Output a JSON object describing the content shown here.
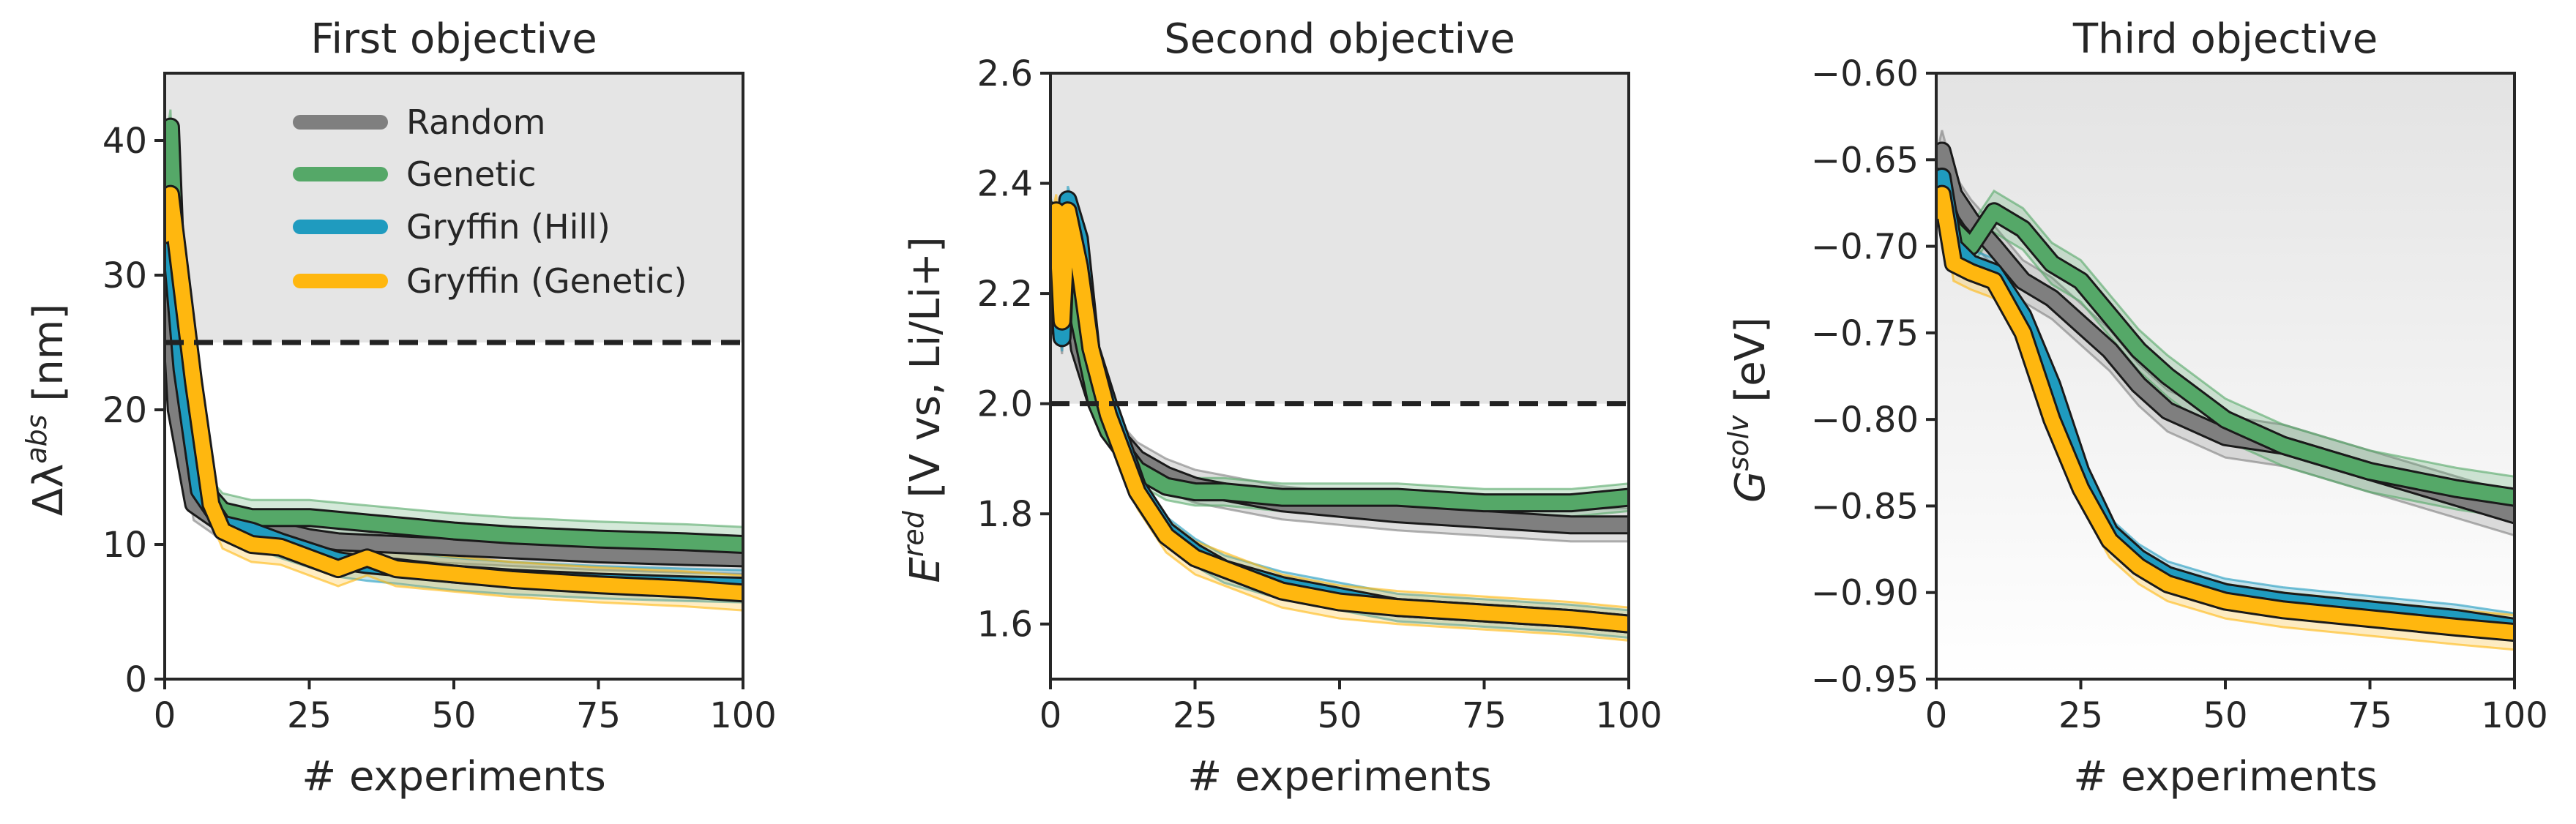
{
  "colors": {
    "Random": "#7f7f7f",
    "Genetic": "#55a868",
    "Gryffin (Hill)": "#1f9bbf",
    "Gryffin (Genetic)": "#ffb70f",
    "threshold_line": "#222222",
    "shade": "#e5e5e5"
  },
  "chart_data": [
    {
      "type": "line",
      "title": "First objective",
      "xlabel": "# experiments",
      "ylabel_base": "Δλ",
      "ylabel_sup": "abs",
      "ylabel_suffix": " [nm]",
      "xlim": [
        0,
        100
      ],
      "ylim": [
        0,
        45
      ],
      "xticks": [
        0,
        25,
        50,
        75,
        100
      ],
      "yticks": [
        0,
        10,
        20,
        30,
        40
      ],
      "threshold": 25,
      "shaded_region": "above-threshold",
      "legend": {
        "placement": "top-center",
        "entries": [
          "Random",
          "Genetic",
          "Gryffin (Hill)",
          "Gryffin (Genetic)"
        ]
      },
      "series": [
        {
          "name": "Random",
          "x": [
            0,
            2,
            5,
            10,
            15,
            20,
            25,
            30,
            40,
            50,
            60,
            75,
            90,
            100
          ],
          "y": [
            35,
            20,
            13,
            11.5,
            11,
            11,
            10.5,
            10.2,
            10,
            9.8,
            9.6,
            9.3,
            9.1,
            9.0
          ],
          "band": 1.2
        },
        {
          "name": "Genetic",
          "x": [
            0,
            1,
            2,
            4,
            7,
            10,
            15,
            20,
            25,
            30,
            40,
            50,
            60,
            75,
            90,
            100
          ],
          "y": [
            38,
            41,
            30,
            20,
            14,
            12.5,
            12,
            12,
            12,
            11.8,
            11.4,
            11,
            10.7,
            10.4,
            10.2,
            10.0
          ],
          "band": 1.3
        },
        {
          "name": "Gryffin (Hill)",
          "x": [
            0,
            1,
            3,
            6,
            10,
            15,
            20,
            25,
            30,
            35,
            40,
            50,
            60,
            75,
            90,
            100
          ],
          "y": [
            34,
            33,
            23,
            14,
            11.5,
            11,
            10.2,
            9.5,
            8.8,
            8.5,
            8.3,
            7.8,
            7.5,
            7.2,
            7.0,
            6.9
          ],
          "band": 1.2
        },
        {
          "name": "Gryffin (Genetic)",
          "x": [
            0,
            1,
            3,
            5,
            8,
            10,
            15,
            20,
            25,
            30,
            35,
            40,
            50,
            60,
            75,
            90,
            100
          ],
          "y": [
            33,
            36,
            29,
            22,
            13,
            11,
            10,
            9.8,
            9,
            8.2,
            9.0,
            8.2,
            7.8,
            7.4,
            7.0,
            6.7,
            6.4
          ],
          "band": 1.3
        }
      ]
    },
    {
      "type": "line",
      "title": "Second objective",
      "xlabel": "# experiments",
      "ylabel_base": "E",
      "ylabel_sup": "red",
      "ylabel_suffix": " [V vs, Li/Li+]",
      "xlim": [
        0,
        100
      ],
      "ylim": [
        1.5,
        2.6
      ],
      "xticks": [
        0,
        25,
        50,
        75,
        100
      ],
      "yticks": [
        1.6,
        1.8,
        2.0,
        2.2,
        2.4,
        2.6
      ],
      "threshold": 2.0,
      "shaded_region": "above-threshold",
      "series": [
        {
          "name": "Random",
          "x": [
            0,
            1,
            2,
            3,
            5,
            8,
            10,
            15,
            20,
            25,
            30,
            40,
            50,
            60,
            75,
            90,
            100
          ],
          "y": [
            2.3,
            2.2,
            2.12,
            2.28,
            2.1,
            2.0,
            1.96,
            1.9,
            1.87,
            1.85,
            1.84,
            1.82,
            1.81,
            1.8,
            1.79,
            1.78,
            1.78
          ],
          "band": 0.03
        },
        {
          "name": "Genetic",
          "x": [
            0,
            1,
            2,
            3,
            5,
            8,
            10,
            15,
            20,
            25,
            30,
            40,
            50,
            60,
            75,
            90,
            100
          ],
          "y": [
            2.35,
            2.3,
            2.15,
            2.35,
            2.15,
            2.0,
            1.95,
            1.88,
            1.85,
            1.84,
            1.84,
            1.83,
            1.83,
            1.83,
            1.82,
            1.82,
            1.83
          ],
          "band": 0.025
        },
        {
          "name": "Gryffin (Hill)",
          "x": [
            0,
            1,
            2,
            3,
            5,
            7,
            10,
            15,
            20,
            25,
            30,
            40,
            50,
            60,
            75,
            90,
            100
          ],
          "y": [
            2.35,
            2.3,
            2.12,
            2.37,
            2.3,
            2.1,
            2.0,
            1.85,
            1.77,
            1.73,
            1.7,
            1.67,
            1.65,
            1.63,
            1.62,
            1.61,
            1.6
          ],
          "band": 0.025
        },
        {
          "name": "Gryffin (Genetic)",
          "x": [
            0,
            1,
            2,
            3,
            5,
            7,
            10,
            15,
            20,
            25,
            30,
            40,
            50,
            60,
            75,
            90,
            100
          ],
          "y": [
            2.3,
            2.35,
            2.15,
            2.35,
            2.25,
            2.1,
            1.98,
            1.84,
            1.76,
            1.72,
            1.7,
            1.66,
            1.64,
            1.63,
            1.62,
            1.61,
            1.6
          ],
          "band": 0.03
        }
      ]
    },
    {
      "type": "line",
      "title": "Third objective",
      "xlabel": "# experiments",
      "ylabel_base": "G",
      "ylabel_sup": "solv",
      "ylabel_suffix": " [eV]",
      "xlim": [
        0,
        100
      ],
      "ylim": [
        -0.95,
        -0.6
      ],
      "xticks": [
        0,
        25,
        50,
        75,
        100
      ],
      "yticks": [
        -0.95,
        -0.9,
        -0.85,
        -0.8,
        -0.75,
        -0.7,
        -0.65,
        -0.6
      ],
      "shaded_region": "gradient",
      "series": [
        {
          "name": "Random",
          "x": [
            0,
            1,
            3,
            6,
            10,
            15,
            20,
            25,
            30,
            35,
            40,
            50,
            60,
            75,
            90,
            100
          ],
          "y": [
            -0.66,
            -0.645,
            -0.67,
            -0.685,
            -0.7,
            -0.72,
            -0.73,
            -0.745,
            -0.76,
            -0.78,
            -0.795,
            -0.81,
            -0.815,
            -0.83,
            -0.845,
            -0.855
          ],
          "band": 0.012
        },
        {
          "name": "Genetic",
          "x": [
            0,
            1,
            3,
            6,
            10,
            15,
            20,
            25,
            30,
            35,
            40,
            50,
            60,
            75,
            90,
            100
          ],
          "y": [
            -0.66,
            -0.67,
            -0.69,
            -0.7,
            -0.68,
            -0.69,
            -0.71,
            -0.72,
            -0.74,
            -0.76,
            -0.775,
            -0.8,
            -0.815,
            -0.83,
            -0.84,
            -0.845
          ],
          "band": 0.012
        },
        {
          "name": "Gryffin (Hill)",
          "x": [
            0,
            1,
            3,
            6,
            10,
            15,
            20,
            25,
            30,
            35,
            40,
            50,
            60,
            75,
            90,
            100
          ],
          "y": [
            -0.67,
            -0.66,
            -0.7,
            -0.71,
            -0.715,
            -0.74,
            -0.78,
            -0.83,
            -0.865,
            -0.88,
            -0.89,
            -0.9,
            -0.905,
            -0.91,
            -0.915,
            -0.92
          ],
          "band": 0.008
        },
        {
          "name": "Gryffin (Genetic)",
          "x": [
            0,
            1,
            3,
            6,
            10,
            15,
            20,
            25,
            30,
            35,
            40,
            50,
            60,
            75,
            90,
            100
          ],
          "y": [
            -0.68,
            -0.67,
            -0.71,
            -0.715,
            -0.72,
            -0.75,
            -0.8,
            -0.84,
            -0.87,
            -0.885,
            -0.895,
            -0.905,
            -0.91,
            -0.915,
            -0.92,
            -0.923
          ],
          "band": 0.01
        }
      ]
    }
  ]
}
